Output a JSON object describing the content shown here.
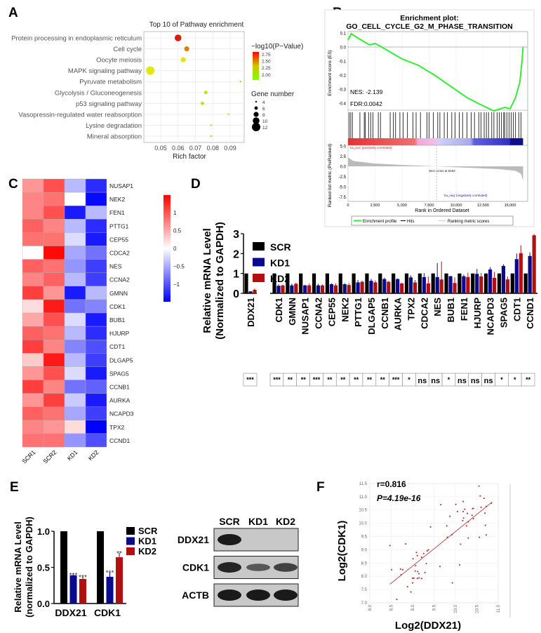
{
  "panels": {
    "a": "A",
    "b": "B",
    "c": "C",
    "d": "D",
    "e": "E",
    "f": "F"
  },
  "chart_data": [
    {
      "id": "A",
      "type": "scatter",
      "title": "Top 10 of Pathway enrichment",
      "xlabel": "Rich factor",
      "xticks": [
        0.05,
        0.06,
        0.07,
        0.08,
        0.09
      ],
      "grid": true,
      "color_legend": {
        "title": "−log10(P−Value)",
        "ticks": [
          2.75,
          2.5,
          2.25,
          2.0
        ],
        "colors": [
          "#ff0000",
          "#7fff00"
        ]
      },
      "size_legend": {
        "title": "Gene number",
        "values": [
          4,
          6,
          8,
          10,
          12
        ]
      },
      "legend_position": "right",
      "points": [
        {
          "pathway": "Protein processing in endoplasmic reticulum",
          "rich_factor": 0.06,
          "neg_log10_p": 2.8,
          "gene_number": 10
        },
        {
          "pathway": "Cell cycle",
          "rich_factor": 0.065,
          "neg_log10_p": 2.55,
          "gene_number": 8
        },
        {
          "pathway": "Oocyte meiosis",
          "rich_factor": 0.063,
          "neg_log10_p": 2.3,
          "gene_number": 8
        },
        {
          "pathway": "MAPK signaling pathway",
          "rich_factor": 0.044,
          "neg_log10_p": 2.25,
          "gene_number": 12
        },
        {
          "pathway": "Pyruvate metabolism",
          "rich_factor": 0.096,
          "neg_log10_p": 2.0,
          "gene_number": 4
        },
        {
          "pathway": "Glycolysis / Gluconeogenesis",
          "rich_factor": 0.076,
          "neg_log10_p": 2.1,
          "gene_number": 6
        },
        {
          "pathway": "p53 signaling pathway",
          "rich_factor": 0.074,
          "neg_log10_p": 2.1,
          "gene_number": 6
        },
        {
          "pathway": "Vasopressin-regulated water reabsorption",
          "rich_factor": 0.089,
          "neg_log10_p": 2.05,
          "gene_number": 4
        },
        {
          "pathway": "Lysine degradation",
          "rich_factor": 0.079,
          "neg_log10_p": 1.95,
          "gene_number": 4
        },
        {
          "pathway": "Mineral absorption",
          "rich_factor": 0.079,
          "neg_log10_p": 1.95,
          "gene_number": 4
        }
      ]
    },
    {
      "id": "B",
      "type": "line",
      "title_line1": "Enrichment plot:",
      "title_line2": "GO_CELL_CYCLE_G2_M_PHASE_TRANSITION",
      "ylabel": "Enrichment score (ES)",
      "ylabel2": "Ranked list metric (PreRanked)",
      "xlabel": "Rank in Ordered Dataset",
      "xticks": [
        "0",
        "2,500",
        "5,000",
        "7,500",
        "10,000",
        "12,500",
        "15,000"
      ],
      "xtick_values": [
        0,
        2500,
        5000,
        7500,
        10000,
        12500,
        15000
      ],
      "yticks": [
        0.1,
        0.0,
        -0.1,
        -0.2,
        -0.3,
        -0.4
      ],
      "yticks2": [
        "5.0",
        "2.5",
        "0.0",
        "-2.5",
        "-5.0",
        "-7.5"
      ],
      "ytick2_values": [
        5,
        2.5,
        0,
        -2.5,
        -5,
        -7.5
      ],
      "nes": "NES: -2.139",
      "fdr": "FDR:0.0042",
      "pos_label": "'na_pos' (positively correlated)",
      "neg_label": "'na_neg' (negatively correlated)",
      "zero_cross": "Zero cross at 8192",
      "zero_cross_rank": 8192,
      "legend": [
        "Enrichment profile",
        "Hits",
        "Ranking metric scores"
      ],
      "line_color": "#33ee33",
      "es_curve": [
        [
          0,
          0.05
        ],
        [
          300,
          0.095
        ],
        [
          1000,
          0.06
        ],
        [
          2000,
          0.015
        ],
        [
          2500,
          0.025
        ],
        [
          3000,
          0.005
        ],
        [
          4000,
          -0.04
        ],
        [
          5000,
          -0.085
        ],
        [
          6500,
          -0.13
        ],
        [
          8000,
          -0.2
        ],
        [
          9500,
          -0.28
        ],
        [
          11000,
          -0.36
        ],
        [
          12000,
          -0.4
        ],
        [
          13500,
          -0.455
        ],
        [
          14500,
          -0.43
        ],
        [
          15000,
          -0.44
        ],
        [
          15500,
          -0.36
        ],
        [
          15900,
          -0.25
        ],
        [
          16100,
          -0.1
        ],
        [
          16200,
          0
        ]
      ],
      "hits": [
        100,
        250,
        400,
        1100,
        1500,
        1600,
        1900,
        2100,
        2300,
        2800,
        3000,
        3900,
        4200,
        4400,
        4800,
        5100,
        5500,
        6000,
        6300,
        6700,
        7300,
        7500,
        7900,
        8300,
        8500,
        8900,
        9200,
        9600,
        9900,
        10300,
        10600,
        11000,
        11400,
        11700,
        12100,
        12300,
        12600,
        12800,
        13000,
        13300,
        13500,
        13800,
        14000,
        14200,
        14400,
        14500,
        14700,
        14900,
        15100,
        15300,
        15500,
        15800,
        16000
      ],
      "ranked_metric_profile": [
        [
          0,
          2.2
        ],
        [
          500,
          1.3
        ],
        [
          2500,
          0.7
        ],
        [
          5000,
          0.35
        ],
        [
          8192,
          0
        ],
        [
          11000,
          -0.35
        ],
        [
          14000,
          -0.7
        ],
        [
          15500,
          -1.1
        ],
        [
          16000,
          -1.8
        ],
        [
          16200,
          -3.5
        ]
      ]
    },
    {
      "id": "C",
      "type": "heatmap",
      "columns": [
        "SCR1",
        "SCR2",
        "KD1",
        "KD2"
      ],
      "rows": [
        "NUSAP1",
        "NEK2",
        "FEN1",
        "PTTG1",
        "CEP55",
        "CDCA2",
        "NES",
        "CCNA2",
        "GMNN",
        "CDK1",
        "BUB1",
        "HJURP",
        "CDT1",
        "DLGAP5",
        "SPAG5",
        "CCNB1",
        "AURKA",
        "NCAPD3",
        "TPX2",
        "CCND1"
      ],
      "values": [
        [
          0.6,
          1.0,
          -0.4,
          -1.2
        ],
        [
          0.7,
          0.8,
          0,
          -1.4
        ],
        [
          0.7,
          1.0,
          -1.3,
          -0.4
        ],
        [
          0.9,
          0.7,
          -0.4,
          -1.2
        ],
        [
          0.8,
          0.8,
          -0.2,
          -1.3
        ],
        [
          0,
          1.4,
          -0.5,
          -0.8
        ],
        [
          0.9,
          0.8,
          -0.6,
          -1.1
        ],
        [
          0.7,
          0.9,
          -0.4,
          -1.1
        ],
        [
          1.1,
          0.6,
          -1.3,
          -0.4
        ],
        [
          0.2,
          1.3,
          -0.8,
          -0.7
        ],
        [
          0.5,
          1.0,
          -0.2,
          -1.3
        ],
        [
          0.9,
          0.8,
          -0.4,
          -1.2
        ],
        [
          1.1,
          0.7,
          -0.7,
          -1.0
        ],
        [
          0.3,
          1.3,
          -0.4,
          -1.1
        ],
        [
          0.6,
          1.0,
          -0.2,
          -1.3
        ],
        [
          1.1,
          0.7,
          -0.8,
          -0.9
        ],
        [
          0.6,
          1.1,
          -0.3,
          -1.3
        ],
        [
          0.9,
          0.8,
          -0.5,
          -1.1
        ],
        [
          0.7,
          0.6,
          0.2,
          -1.5
        ],
        [
          0.8,
          0.8,
          -0.6,
          -1.0
        ]
      ],
      "scale_ticks": [
        "1",
        "0.5",
        "0",
        "−0.5",
        "−1"
      ],
      "scale_tick_values": [
        1,
        0.5,
        0,
        -0.5,
        -1
      ],
      "range": [
        -1.45,
        1.45
      ],
      "colors": {
        "low": "#0000ff",
        "mid": "#ffffff",
        "high": "#ff0000"
      }
    },
    {
      "id": "D",
      "type": "bar",
      "ylabel_line1": "Relative mRNA Level",
      "ylabel_line2": "(Normalized to GAPDH)",
      "ylim": [
        0,
        3
      ],
      "yticks": [
        0,
        1,
        2,
        3
      ],
      "categories": [
        "DDX21",
        "CDK1",
        "GMNN",
        "NUSAP1",
        "CCNA2",
        "CEP55",
        "NEK2",
        "PTTG1",
        "DLGAP5",
        "CCNB1",
        "AURKA",
        "TPX2",
        "CDCA2",
        "NES",
        "BUB1",
        "FEN1",
        "HJURP",
        "NCAPD3",
        "SPAG5",
        "CDT1",
        "CCND1"
      ],
      "series": [
        {
          "name": "SCR",
          "color": "#000000",
          "values": [
            1,
            1,
            1,
            1,
            1,
            1,
            1,
            1,
            1,
            1,
            1,
            1,
            1,
            1,
            1,
            1,
            1,
            1,
            1,
            1,
            1
          ],
          "errors": [
            0,
            0,
            0,
            0,
            0,
            0,
            0,
            0,
            0,
            0,
            0,
            0,
            0,
            0,
            0,
            0,
            0,
            0,
            0,
            0,
            0
          ]
        },
        {
          "name": "KD1",
          "color": "#0a0a8c",
          "values": [
            0.1,
            0.38,
            0.4,
            0.4,
            0.4,
            0.46,
            0.46,
            0.55,
            0.63,
            0.72,
            0.72,
            0.8,
            0.82,
            0.82,
            0.86,
            0.86,
            0.98,
            1.2,
            1.38,
            1.72,
            1.88
          ],
          "errors": [
            0.01,
            0.07,
            0.08,
            0.03,
            0.08,
            0.05,
            0.05,
            0.12,
            0.1,
            0.07,
            0.03,
            0.1,
            0.2,
            0.7,
            0.03,
            0.08,
            0.25,
            0.12,
            0.08,
            0.28,
            0.18
          ]
        },
        {
          "name": "KD2",
          "color": "#b01010",
          "values": [
            0.18,
            0.4,
            0.48,
            0.4,
            0.4,
            0.4,
            0.42,
            0.58,
            0.55,
            0.58,
            0.5,
            0.55,
            0.5,
            0.7,
            0.52,
            0.82,
            0.85,
            0.78,
            0.7,
            2.02,
            2.92
          ],
          "errors": [
            0.05,
            0.04,
            0.06,
            0.1,
            0.05,
            0.1,
            0.1,
            0.06,
            0.1,
            0.05,
            0.04,
            0.12,
            0.34,
            0.9,
            0.28,
            0.22,
            0.17,
            0.3,
            0.14,
            0.4,
            0.06
          ]
        }
      ],
      "significance": [
        "***",
        "***",
        "**",
        "**",
        "***",
        "**",
        "**",
        "**",
        "**",
        "**",
        "***",
        "*",
        "ns",
        "ns",
        "*",
        "ns",
        "ns",
        "ns",
        "*",
        "*",
        "**"
      ],
      "legend_position": "top-left"
    },
    {
      "id": "E",
      "type": "bar",
      "ylabel_line1": "Relative mRNA Level",
      "ylabel_line2": "(normalized to GAPDH)",
      "ylim": [
        0,
        1.0
      ],
      "yticks": [
        "0.0",
        "0.5",
        "1.0"
      ],
      "ytick_values": [
        0,
        0.5,
        1.0
      ],
      "categories": [
        "DDX21",
        "CDK1"
      ],
      "series": [
        {
          "name": "SCR",
          "color": "#000000",
          "values": [
            1.0,
            1.0
          ],
          "errors": [
            0,
            0
          ],
          "sig": [
            "",
            ""
          ]
        },
        {
          "name": "KD1",
          "color": "#0a0a8c",
          "values": [
            0.39,
            0.37
          ],
          "errors": [
            0.01,
            0.06
          ],
          "sig": [
            "***",
            "***"
          ]
        },
        {
          "name": "KD2",
          "color": "#b01010",
          "values": [
            0.34,
            0.64
          ],
          "errors": [
            0.03,
            0.06
          ],
          "sig": [
            "***",
            "**"
          ]
        }
      ],
      "legend_position": "right"
    },
    {
      "id": "F",
      "type": "scatter",
      "r_text": "r=0.816",
      "p_text": "P=4.19e-16",
      "xlabel": "Log2(DDX21)",
      "ylabel": "Log2(CDK1)",
      "xlim": [
        8.0,
        11.0
      ],
      "ylim": [
        7.0,
        11.5
      ],
      "xticks": [
        "8.0",
        "8.5",
        "9.0",
        "9.5",
        "10.0",
        "10.5",
        "11.0"
      ],
      "yticks": [
        "7.0",
        "7.5",
        "8.0",
        "8.5",
        "9.0",
        "9.5",
        "10.0",
        "10.5",
        "11.0",
        "11.5"
      ],
      "point_color": "#b04040",
      "fit_line": [
        [
          8.47,
          7.7
        ],
        [
          10.86,
          10.8
        ]
      ],
      "points": [
        [
          8.47,
          9.16
        ],
        [
          8.51,
          8.25
        ],
        [
          8.63,
          7.13
        ],
        [
          8.72,
          8.27
        ],
        [
          8.73,
          8.06
        ],
        [
          8.77,
          8.25
        ],
        [
          8.84,
          9.22
        ],
        [
          8.88,
          7.61
        ],
        [
          8.96,
          7.41
        ],
        [
          9.0,
          7.93
        ],
        [
          9.0,
          7.75
        ],
        [
          9.01,
          8.66
        ],
        [
          9.03,
          7.93
        ],
        [
          9.06,
          8.2
        ],
        [
          9.07,
          8.4
        ],
        [
          9.09,
          8.9
        ],
        [
          9.11,
          8.78
        ],
        [
          9.11,
          7.92
        ],
        [
          9.12,
          8.18
        ],
        [
          9.15,
          8.1
        ],
        [
          9.15,
          7.94
        ],
        [
          9.21,
          7.92
        ],
        [
          9.21,
          8.72
        ],
        [
          9.26,
          8.86
        ],
        [
          9.29,
          8.14
        ],
        [
          9.32,
          8.48
        ],
        [
          9.34,
          8.96
        ],
        [
          9.37,
          9.0
        ],
        [
          9.42,
          9.86
        ],
        [
          9.64,
          8.37
        ],
        [
          9.66,
          10.7
        ],
        [
          9.8,
          9.9
        ],
        [
          9.81,
          9.47
        ],
        [
          9.87,
          10.26
        ],
        [
          9.92,
          9.57
        ],
        [
          9.93,
          7.75
        ],
        [
          10.01,
          10.71
        ],
        [
          10.05,
          10.44
        ],
        [
          10.1,
          8.43
        ],
        [
          10.12,
          9.21
        ],
        [
          10.17,
          10.1
        ],
        [
          10.18,
          10.82
        ],
        [
          10.19,
          10.2
        ],
        [
          10.18,
          10.44
        ],
        [
          10.22,
          10.53
        ],
        [
          10.26,
          9.9
        ],
        [
          10.28,
          10.37
        ],
        [
          10.3,
          9.44
        ],
        [
          10.3,
          10.05
        ],
        [
          10.39,
          10.3
        ],
        [
          10.4,
          10.55
        ],
        [
          10.42,
          10.56
        ],
        [
          10.42,
          10.17
        ],
        [
          10.55,
          11.4
        ],
        [
          10.56,
          9.47
        ],
        [
          10.58,
          11.03
        ],
        [
          10.6,
          10.6
        ],
        [
          10.67,
          10.94
        ],
        [
          10.69,
          10.38
        ],
        [
          10.7,
          9.92
        ],
        [
          10.72,
          9.56
        ],
        [
          10.72,
          10.63
        ],
        [
          10.84,
          10.76
        ]
      ]
    }
  ],
  "western_blot": {
    "lanes": [
      "SCR",
      "KD1",
      "KD2"
    ],
    "proteins": [
      "DDX21",
      "CDK1",
      "ACTB"
    ],
    "band_intensity": [
      [
        1,
        0,
        0
      ],
      [
        0.9,
        0.45,
        0.65
      ],
      [
        1,
        1,
        1
      ]
    ]
  }
}
